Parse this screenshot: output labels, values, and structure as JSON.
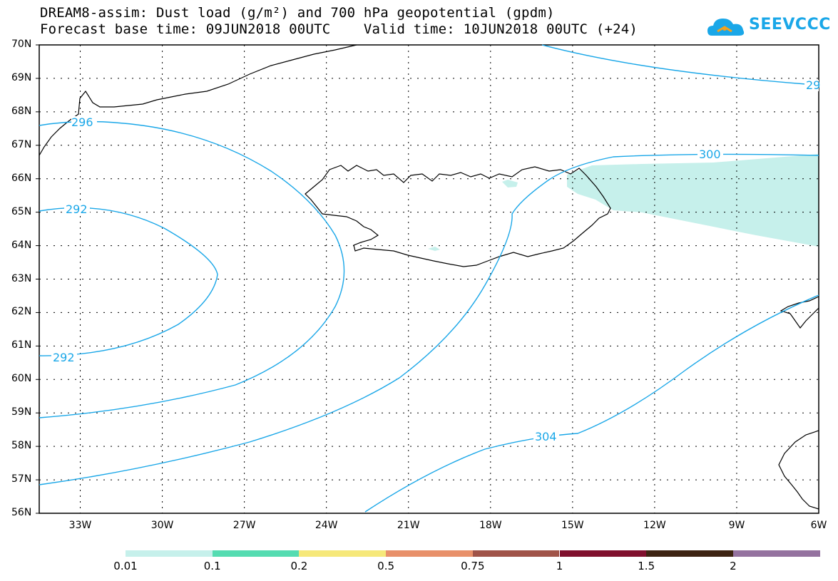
{
  "title": {
    "line1": "DREAM8-assim: Dust load (g/m²) and 700 hPa geopotential (gpdm)",
    "line2": "Forecast base time: 09JUN2018 00UTC    Valid time: 10JUN2018 00UTC (+24)"
  },
  "logo": {
    "text": "SEEVCCC",
    "icon": "cloud-sun-icon",
    "color": "#1aa7e8"
  },
  "map": {
    "lat_range": [
      56,
      70
    ],
    "lon_range": [
      -34.5,
      -6
    ],
    "lat_labels": [
      "70N",
      "69N",
      "68N",
      "67N",
      "66N",
      "65N",
      "64N",
      "63N",
      "62N",
      "61N",
      "60N",
      "59N",
      "58N",
      "57N",
      "56N"
    ],
    "lon_labels": [
      "33W",
      "30W",
      "27W",
      "24W",
      "21W",
      "18W",
      "15W",
      "12W",
      "9W",
      "6W"
    ],
    "contour_color": "#1aa7e8",
    "contour_labels": [
      "296",
      "292",
      "292",
      "300",
      "304",
      "29"
    ],
    "dust_color": "#c6f0eb",
    "grid": true
  },
  "colorbar": {
    "colors": [
      "#c6f0eb",
      "#55dcb1",
      "#f6e87a",
      "#e8906a",
      "#a05449",
      "#80102e",
      "#3d2412",
      "#94729f"
    ],
    "labels": [
      "0.01",
      "0.1",
      "0.2",
      "0.5",
      "0.75",
      "1",
      "1.5",
      "2"
    ]
  }
}
